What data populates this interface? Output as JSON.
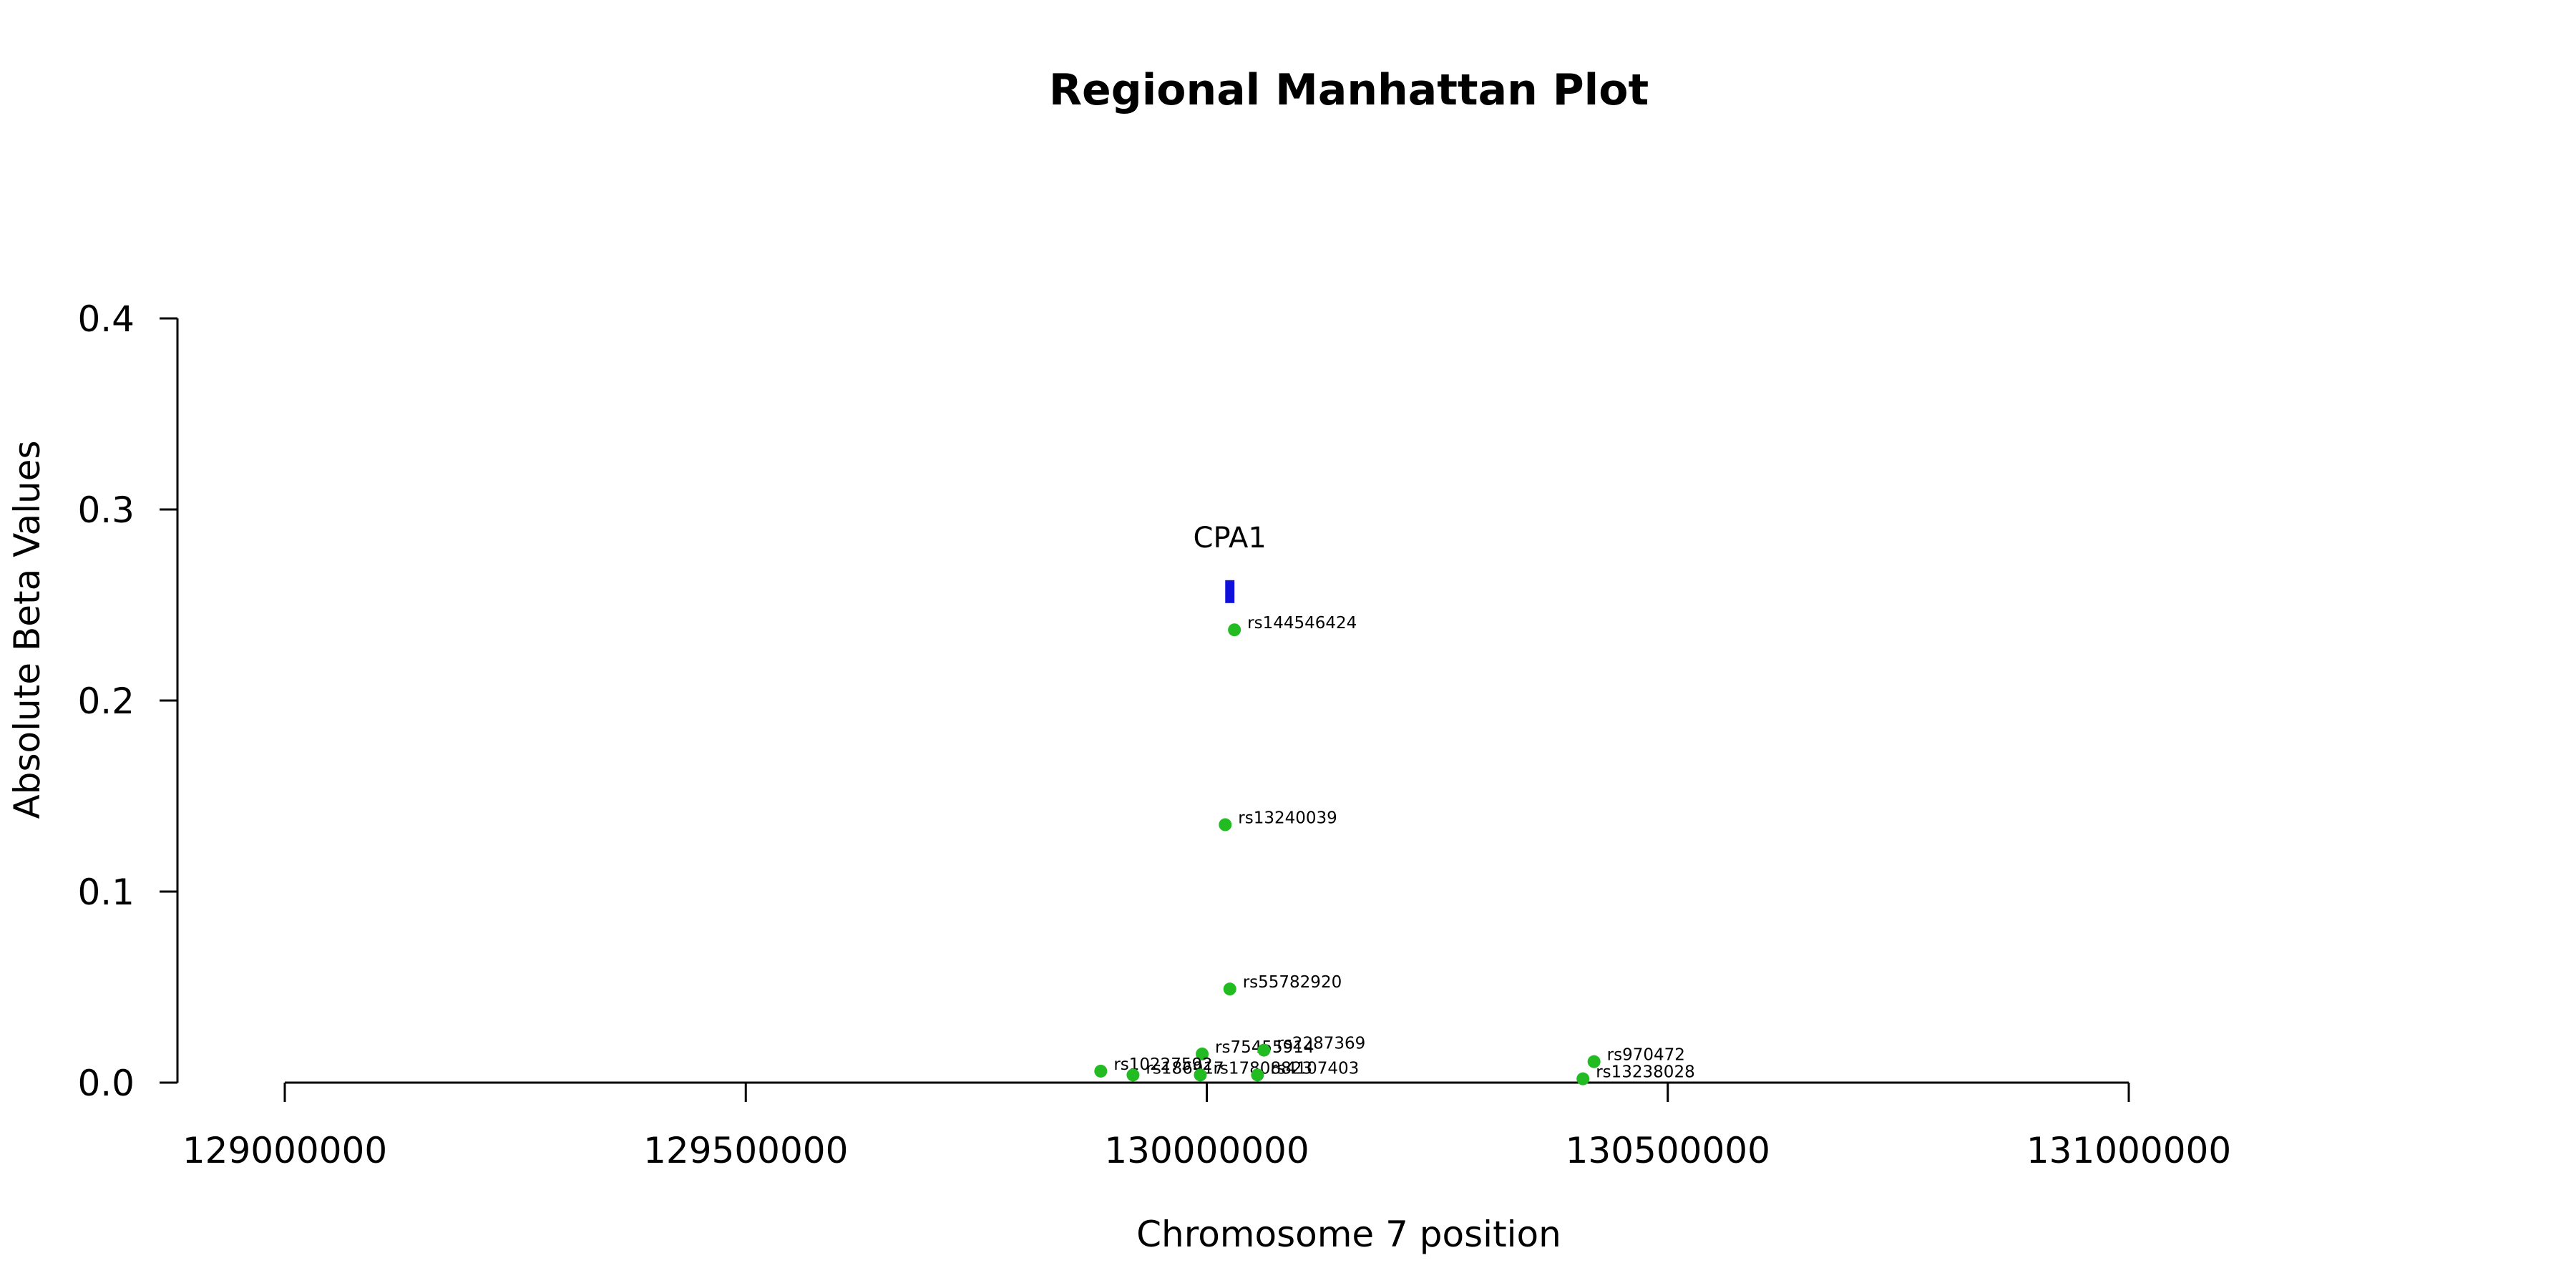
{
  "chart_data": {
    "type": "scatter",
    "title": "Regional Manhattan Plot",
    "xlabel": "Chromosome 7 position",
    "ylabel": "Absolute Beta Values",
    "xlim": [
      129000000,
      131000000
    ],
    "ylim": [
      0,
      0.4
    ],
    "x_ticks": [
      129000000,
      129500000,
      130000000,
      130500000,
      131000000
    ],
    "y_ticks": [
      0.0,
      0.1,
      0.2,
      0.3,
      0.4
    ],
    "x_tick_labels": [
      "129000000",
      "129500000",
      "130000000",
      "130500000",
      "131000000"
    ],
    "y_tick_labels": [
      "0.0",
      "0.1",
      "0.2",
      "0.3",
      "0.4"
    ],
    "grid": false,
    "point_color": "#22bb22",
    "gene_color": "#1010dd",
    "genes": [
      {
        "name": "CPA1",
        "start": 130020000,
        "end": 130030000,
        "y": 0.257
      }
    ],
    "points": [
      {
        "snp": "rs144546424",
        "x": 130030000,
        "y": 0.237
      },
      {
        "snp": "rs13240039",
        "x": 130020000,
        "y": 0.135
      },
      {
        "snp": "rs55782920",
        "x": 130025000,
        "y": 0.049
      },
      {
        "snp": "rs75455914",
        "x": 129995000,
        "y": 0.015
      },
      {
        "snp": "rs2287369",
        "x": 130062000,
        "y": 0.017
      },
      {
        "snp": "rs10227592",
        "x": 129885000,
        "y": 0.006
      },
      {
        "snp": "rs186917",
        "x": 129920000,
        "y": 0.004
      },
      {
        "snp": "rs17808823",
        "x": 129993000,
        "y": 0.004
      },
      {
        "snp": "rs4107403",
        "x": 130055000,
        "y": 0.004
      },
      {
        "snp": "rs970472",
        "x": 130420000,
        "y": 0.011
      },
      {
        "snp": "rs13238028",
        "x": 130408000,
        "y": 0.002
      }
    ]
  }
}
